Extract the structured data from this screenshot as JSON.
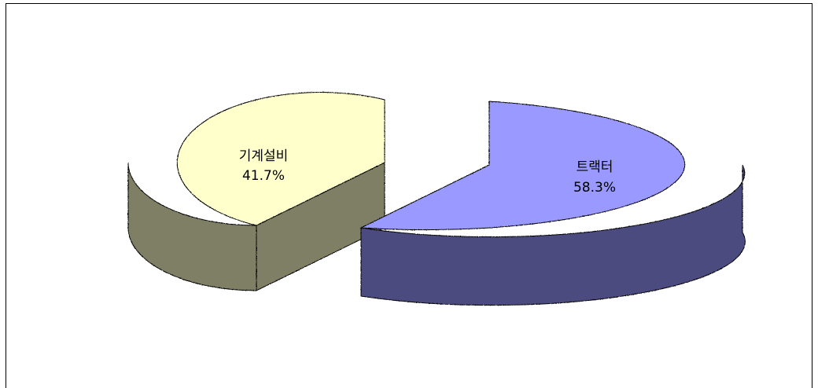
{
  "chart_data": {
    "type": "pie",
    "style": "3d-exploded",
    "title": "",
    "legend": "none",
    "slices": [
      {
        "label": "트랙터",
        "percent_label": "58.3%",
        "value": 58.3,
        "top_color": "#9999ff",
        "side_color": "#4b4b7f"
      },
      {
        "label": "기계설비",
        "percent_label": "41.7%",
        "value": 41.7,
        "top_color": "#ffffcc",
        "side_color": "#7f7f66"
      }
    ]
  }
}
